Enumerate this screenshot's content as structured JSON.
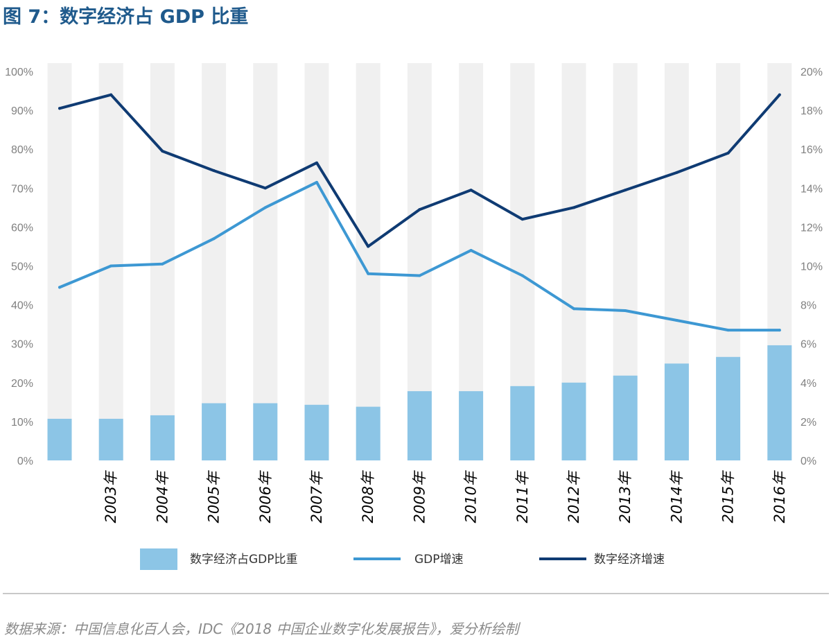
{
  "title": "图 7：数字经济占 GDP 比重",
  "source": "数据来源：中国信息化百人会，IDC《2018 中国企业数字化发展报告》，爱分析绘制",
  "chart_data": {
    "type": "bar",
    "categories": [
      "",
      "2003年",
      "2004年",
      "2005年",
      "2006年",
      "2007年",
      "2008年",
      "2009年",
      "2010年",
      "2011年",
      "2012年",
      "2013年",
      "2014年",
      "2015年",
      "2016年"
    ],
    "left_axis": {
      "ylim": [
        0,
        100
      ],
      "ticks": [
        "0%",
        "10%",
        "20%",
        "30%",
        "40%",
        "50%",
        "60%",
        "70%",
        "80%",
        "90%",
        "100%"
      ]
    },
    "right_axis": {
      "ylim": [
        0,
        20
      ],
      "ticks": [
        "0%",
        "2%",
        "4%",
        "6%",
        "8%",
        "10%",
        "12%",
        "14%",
        "16%",
        "18%",
        "20%"
      ]
    },
    "series": [
      {
        "name": "数字经济占GDP比重",
        "type": "bar",
        "axis": "left",
        "color": "#8cc5e6",
        "values": [
          10.7,
          10.7,
          11.6,
          14.7,
          14.7,
          14.3,
          13.8,
          17.8,
          17.8,
          19.1,
          20.0,
          21.8,
          24.9,
          26.6,
          29.6
        ]
      },
      {
        "name": "GDP增速",
        "type": "line",
        "axis": "right",
        "color": "#3d98d3",
        "values": [
          8.9,
          10.0,
          10.1,
          11.4,
          13.0,
          14.3,
          9.6,
          9.5,
          10.8,
          9.5,
          7.8,
          7.7,
          7.2,
          6.7,
          6.7
        ]
      },
      {
        "name": "数字经济增速",
        "type": "line",
        "axis": "right",
        "color": "#0f3b73",
        "values": [
          18.1,
          18.8,
          15.9,
          14.9,
          14.0,
          15.3,
          11.0,
          12.9,
          13.9,
          12.4,
          13.0,
          13.9,
          14.8,
          15.8,
          18.8
        ]
      }
    ],
    "bar_background_color": "#f0f0f0",
    "grid": false,
    "legend": "bottom"
  }
}
